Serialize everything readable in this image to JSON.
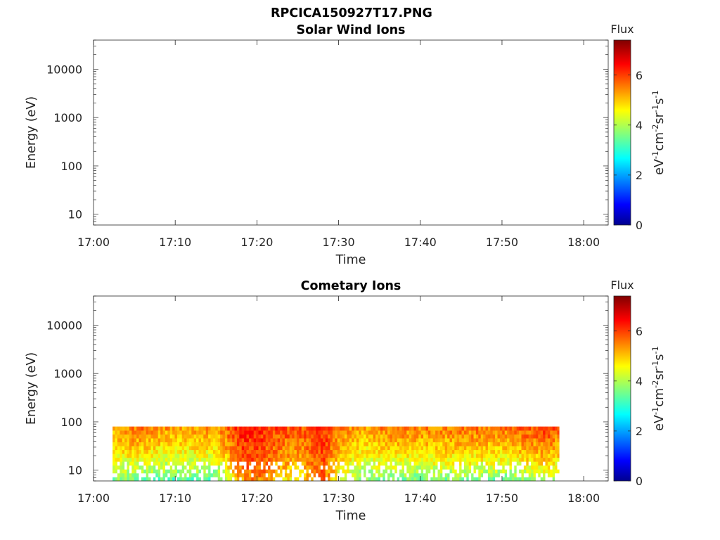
{
  "figure_title": "RPCICA150927T17.PNG",
  "chart_data": [
    {
      "type": "heatmap",
      "title": "Solar Wind Ions",
      "xlabel": "Time",
      "ylabel": "Energy (eV)",
      "xlim": [
        "17:00",
        "18:03"
      ],
      "x_ticks": [
        "17:00",
        "17:10",
        "17:20",
        "17:30",
        "17:40",
        "17:50",
        "18:00"
      ],
      "y_scale": "log",
      "ylim": [
        6,
        40000
      ],
      "y_ticks": [
        10,
        100,
        1000,
        10000
      ],
      "y_tick_labels": [
        "10",
        "100",
        "1000",
        "10000"
      ],
      "colorbar": {
        "title": "Flux",
        "label": "eV-1cm-2sr-1s-1",
        "label_parts": [
          "eV",
          "-1",
          "cm",
          "-2",
          "sr",
          "-1",
          "s",
          "-1"
        ],
        "range": [
          0,
          7.4
        ],
        "ticks": [
          "0",
          "2",
          "4",
          "6"
        ],
        "colormap": "jet"
      },
      "data": "none"
    },
    {
      "type": "heatmap",
      "title": "Cometary Ions",
      "xlabel": "Time",
      "ylabel": "Energy (eV)",
      "xlim": [
        "17:00",
        "18:03"
      ],
      "x_ticks": [
        "17:00",
        "17:10",
        "17:20",
        "17:30",
        "17:40",
        "17:50",
        "18:00"
      ],
      "y_scale": "log",
      "ylim": [
        6,
        40000
      ],
      "y_ticks": [
        10,
        100,
        1000,
        10000
      ],
      "y_tick_labels": [
        "10",
        "100",
        "1000",
        "10000"
      ],
      "colorbar": {
        "title": "Flux",
        "label": "eV-1cm-2sr-1s-1",
        "label_parts": [
          "eV",
          "-1",
          "cm",
          "-2",
          "sr",
          "-1",
          "s",
          "-1"
        ],
        "range": [
          0,
          7.4
        ],
        "ticks": [
          "0",
          "2",
          "4",
          "6"
        ],
        "colormap": "jet"
      },
      "data_extent": {
        "time_start": "17:02:20",
        "time_end": "17:57:00",
        "energy_min": 6,
        "energy_max": 80
      },
      "time_profile": {
        "times": [
          "17:02",
          "17:05",
          "17:10",
          "17:15",
          "17:18",
          "17:20",
          "17:23",
          "17:25",
          "17:28",
          "17:30",
          "17:33",
          "17:35",
          "17:40",
          "17:45",
          "17:50",
          "17:55",
          "17:57"
        ],
        "flux_top": [
          5.2,
          5.6,
          5.3,
          5.4,
          6.3,
          6.2,
          5.9,
          5.8,
          6.1,
          5.6,
          5.2,
          5.5,
          5.5,
          5.6,
          5.6,
          6.0,
          5.7
        ],
        "flux_bottom": [
          3.8,
          3.6,
          3.4,
          3.5,
          5.4,
          5.6,
          4.8,
          4.6,
          5.8,
          4.2,
          3.7,
          3.7,
          3.6,
          3.8,
          3.6,
          4.0,
          3.9
        ]
      }
    }
  ]
}
